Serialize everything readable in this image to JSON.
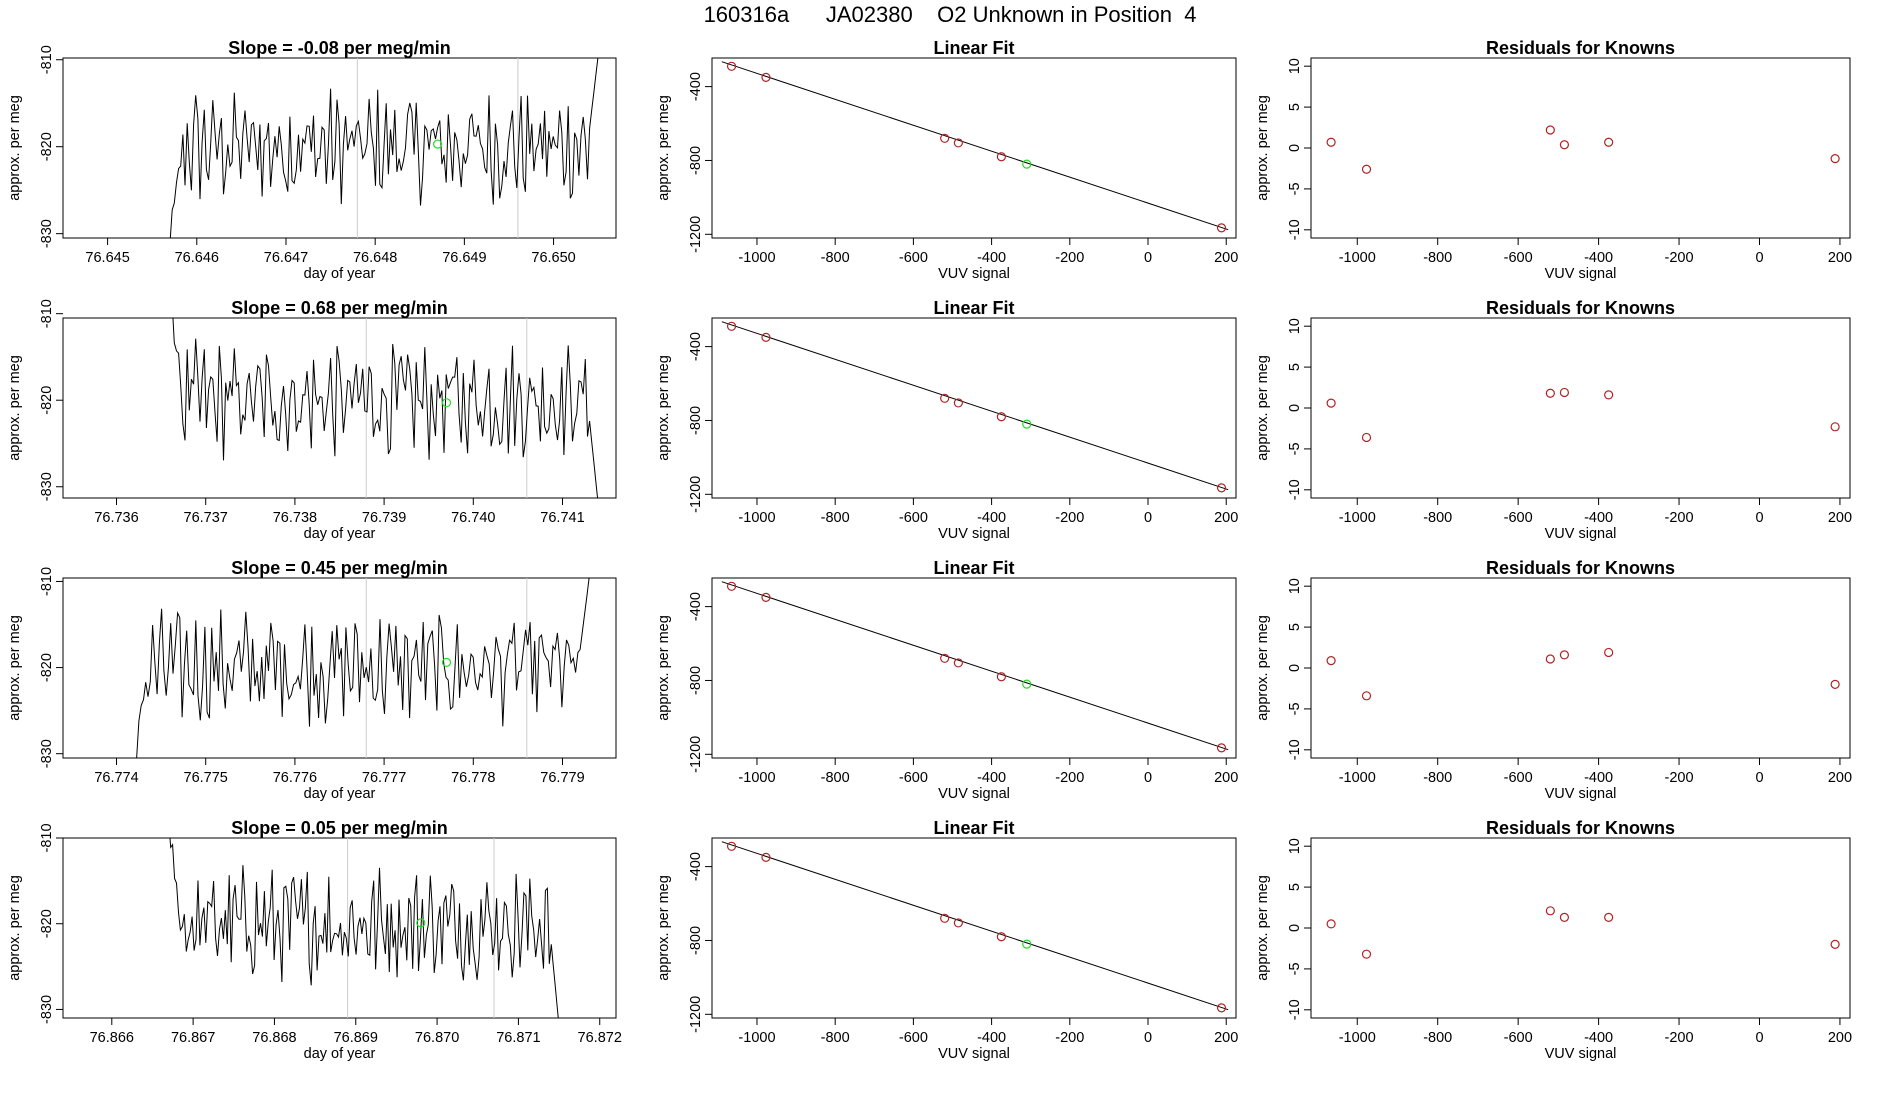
{
  "page_title": "160316a      JA02380    O2 Unknown in Position  4",
  "colors": {
    "line": "#000000",
    "known_point": "#b22222",
    "unknown_point": "#22dd22",
    "guide_line": "#cccccc"
  },
  "chart_data": [
    {
      "type": "line",
      "row": 1,
      "title": "Slope =  -0.08  per meg/min",
      "xlabel": "day of year",
      "ylabel": "approx. per meg",
      "xlim": [
        76.6445,
        76.6507
      ],
      "ylim": [
        -830.5,
        -809.8
      ],
      "xticks": [
        "76.645",
        "76.646",
        "76.647",
        "76.648",
        "76.649",
        "76.650"
      ],
      "yticks": [
        "-830",
        "-820",
        "-810"
      ],
      "xstart": 76.6457,
      "xend": 76.6505,
      "yfirst": -830.5,
      "ylast": -809.5,
      "vlines": [
        76.6478,
        76.6496
      ],
      "unknown_point": {
        "x": 76.6487,
        "y": -819.7
      }
    },
    {
      "type": "scatter",
      "row": 1,
      "title": "Linear Fit",
      "xlabel": "VUV signal",
      "ylabel": "approx. per meg",
      "xlim": [
        -1115,
        225
      ],
      "ylim": [
        -1220,
        -245
      ],
      "xticks": [
        "-1000",
        "-800",
        "-600",
        "-400",
        "-200",
        "0",
        "200"
      ],
      "yticks": [
        "-400",
        "-800",
        "-1200"
      ],
      "fit": {
        "x": [
          -1090,
          205
        ],
        "y": [
          -265,
          -1175
        ]
      },
      "knowns": {
        "x": [
          -1065,
          -977,
          -520,
          -485,
          -375,
          188
        ],
        "y": [
          -290,
          -350,
          -680,
          -705,
          -780,
          -1165
        ]
      },
      "unknown": {
        "x": -310,
        "y": -820
      }
    },
    {
      "type": "scatter",
      "row": 1,
      "title": "Residuals for Knowns",
      "xlabel": "VUV signal",
      "ylabel": "approx. per meg",
      "xlim": [
        -1115,
        225
      ],
      "ylim": [
        -11,
        11
      ],
      "xticks": [
        "-1000",
        "-800",
        "-600",
        "-400",
        "-200",
        "0",
        "200"
      ],
      "yticks": [
        "-10",
        "-5",
        "0",
        "5",
        "10"
      ],
      "residuals": {
        "x": [
          -1065,
          -977,
          -520,
          -485,
          -375,
          188
        ],
        "y": [
          0.7,
          -2.6,
          2.2,
          0.4,
          0.7,
          -1.3
        ]
      }
    },
    {
      "type": "line",
      "row": 2,
      "title": "Slope =  0.68  per meg/min",
      "xlabel": "day of year",
      "ylabel": "approx. per meg",
      "xlim": [
        76.7354,
        76.7416
      ],
      "ylim": [
        -831.3,
        -810.5
      ],
      "xticks": [
        "76.736",
        "76.737",
        "76.738",
        "76.739",
        "76.740",
        "76.741"
      ],
      "yticks": [
        "-830",
        "-820",
        "-810"
      ],
      "xstart": 76.7366,
      "xend": 76.7414,
      "yfirst": -808,
      "ylast": -832,
      "vlines": [
        76.7388,
        76.7406
      ],
      "unknown_point": {
        "x": 76.7397,
        "y": -820.3
      }
    },
    {
      "type": "scatter",
      "row": 2,
      "title": "Linear Fit",
      "xlabel": "VUV signal",
      "ylabel": "approx. per meg",
      "xlim": [
        -1115,
        225
      ],
      "ylim": [
        -1220,
        -245
      ],
      "xticks": [
        "-1000",
        "-800",
        "-600",
        "-400",
        "-200",
        "0",
        "200"
      ],
      "yticks": [
        "-400",
        "-800",
        "-1200"
      ],
      "fit": {
        "x": [
          -1090,
          205
        ],
        "y": [
          -265,
          -1175
        ]
      },
      "knowns": {
        "x": [
          -1065,
          -977,
          -520,
          -485,
          -375,
          188
        ],
        "y": [
          -290,
          -350,
          -680,
          -705,
          -780,
          -1165
        ]
      },
      "unknown": {
        "x": -310,
        "y": -820
      }
    },
    {
      "type": "scatter",
      "row": 2,
      "title": "Residuals for Knowns",
      "xlabel": "VUV signal",
      "ylabel": "approx. per meg",
      "xlim": [
        -1115,
        225
      ],
      "ylim": [
        -11,
        11
      ],
      "xticks": [
        "-1000",
        "-800",
        "-600",
        "-400",
        "-200",
        "0",
        "200"
      ],
      "yticks": [
        "-10",
        "-5",
        "0",
        "5",
        "10"
      ],
      "residuals": {
        "x": [
          -1065,
          -977,
          -520,
          -485,
          -375,
          188
        ],
        "y": [
          0.6,
          -3.6,
          1.8,
          1.9,
          1.6,
          -2.3
        ]
      }
    },
    {
      "type": "line",
      "row": 3,
      "title": "Slope =  0.45  per meg/min",
      "xlabel": "day of year",
      "ylabel": "approx. per meg",
      "xlim": [
        76.7734,
        76.7796
      ],
      "ylim": [
        -830.5,
        -809.6
      ],
      "xticks": [
        "76.774",
        "76.775",
        "76.776",
        "76.777",
        "76.778",
        "76.779"
      ],
      "yticks": [
        "-830",
        "-820",
        "-810"
      ],
      "xstart": 76.7742,
      "xend": 76.7793,
      "yfirst": -831,
      "ylast": -809.5,
      "vlines": [
        76.7768,
        76.7786
      ],
      "unknown_point": {
        "x": 76.7777,
        "y": -819.4
      }
    },
    {
      "type": "scatter",
      "row": 3,
      "title": "Linear Fit",
      "xlabel": "VUV signal",
      "ylabel": "approx. per meg",
      "xlim": [
        -1115,
        225
      ],
      "ylim": [
        -1220,
        -245
      ],
      "xticks": [
        "-1000",
        "-800",
        "-600",
        "-400",
        "-200",
        "0",
        "200"
      ],
      "yticks": [
        "-400",
        "-800",
        "-1200"
      ],
      "fit": {
        "x": [
          -1090,
          205
        ],
        "y": [
          -265,
          -1175
        ]
      },
      "knowns": {
        "x": [
          -1065,
          -977,
          -520,
          -485,
          -375,
          188
        ],
        "y": [
          -290,
          -350,
          -680,
          -705,
          -780,
          -1165
        ]
      },
      "unknown": {
        "x": -310,
        "y": -820
      }
    },
    {
      "type": "scatter",
      "row": 3,
      "title": "Residuals for Knowns",
      "xlabel": "VUV signal",
      "ylabel": "approx. per meg",
      "xlim": [
        -1115,
        225
      ],
      "ylim": [
        -11,
        11
      ],
      "xticks": [
        "-1000",
        "-800",
        "-600",
        "-400",
        "-200",
        "0",
        "200"
      ],
      "yticks": [
        "-10",
        "-5",
        "0",
        "5",
        "10"
      ],
      "residuals": {
        "x": [
          -1065,
          -977,
          -520,
          -485,
          -375,
          188
        ],
        "y": [
          0.9,
          -3.4,
          1.1,
          1.6,
          1.9,
          -2.0
        ]
      }
    },
    {
      "type": "line",
      "row": 4,
      "title": "Slope =  0.05  per meg/min",
      "xlabel": "day of year",
      "ylabel": "approx. per meg",
      "xlim": [
        76.8654,
        76.8722
      ],
      "ylim": [
        -831,
        -810
      ],
      "xticks": [
        "76.866",
        "76.867",
        "76.868",
        "76.869",
        "76.870",
        "76.871",
        "76.872"
      ],
      "yticks": [
        "-830",
        "-820",
        "-810"
      ],
      "xstart": 76.8667,
      "xend": 76.8715,
      "yfirst": -808,
      "ylast": -832,
      "vlines": [
        76.8689,
        76.8707
      ],
      "unknown_point": {
        "x": 76.8698,
        "y": -819.9
      }
    },
    {
      "type": "scatter",
      "row": 4,
      "title": "Linear Fit",
      "xlabel": "VUV signal",
      "ylabel": "approx. per meg",
      "xlim": [
        -1115,
        225
      ],
      "ylim": [
        -1220,
        -245
      ],
      "xticks": [
        "-1000",
        "-800",
        "-600",
        "-400",
        "-200",
        "0",
        "200"
      ],
      "yticks": [
        "-400",
        "-800",
        "-1200"
      ],
      "fit": {
        "x": [
          -1090,
          205
        ],
        "y": [
          -265,
          -1175
        ]
      },
      "knowns": {
        "x": [
          -1065,
          -977,
          -520,
          -485,
          -375,
          188
        ],
        "y": [
          -290,
          -350,
          -680,
          -705,
          -780,
          -1165
        ]
      },
      "unknown": {
        "x": -310,
        "y": -820
      }
    },
    {
      "type": "scatter",
      "row": 4,
      "title": "Residuals for Knowns",
      "xlabel": "VUV signal",
      "ylabel": "approx. per meg",
      "xlim": [
        -1115,
        225
      ],
      "ylim": [
        -11,
        11
      ],
      "xticks": [
        "-1000",
        "-800",
        "-600",
        "-400",
        "-200",
        "0",
        "200"
      ],
      "yticks": [
        "-10",
        "-5",
        "0",
        "5",
        "10"
      ],
      "residuals": {
        "x": [
          -1065,
          -977,
          -520,
          -485,
          -375,
          188
        ],
        "y": [
          0.5,
          -3.2,
          2.1,
          1.3,
          1.3,
          -2.0
        ]
      }
    }
  ]
}
